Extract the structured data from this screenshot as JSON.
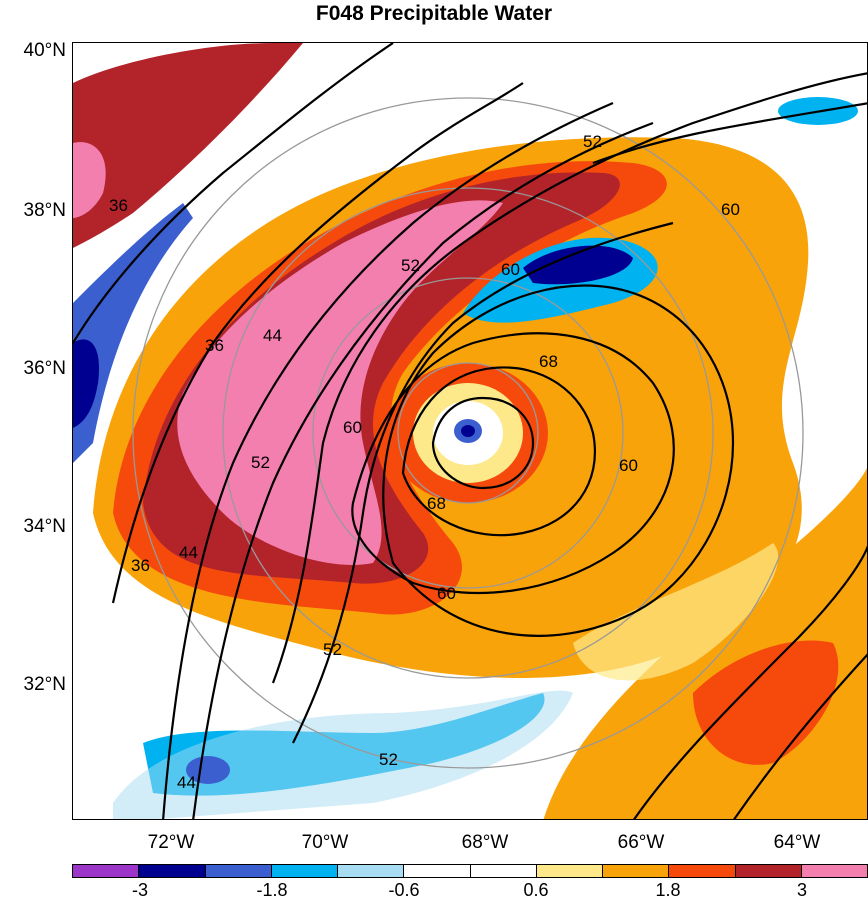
{
  "title": "F048 Precipitable Water",
  "lat_labels": [
    "40°N",
    "38°N",
    "36°N",
    "34°N",
    "32°N"
  ],
  "lon_labels": [
    "72°W",
    "70°W",
    "68°W",
    "66°W",
    "64°W"
  ],
  "contour_labels": [
    "36",
    "36",
    "36",
    "44",
    "44",
    "44",
    "52",
    "52",
    "52",
    "52",
    "52",
    "60",
    "60",
    "60",
    "60",
    "60",
    "68",
    "68"
  ],
  "colorbar": {
    "colors": [
      "#9c36c8",
      "#000090",
      "#3c5fd0",
      "#00b2f0",
      "#a8dcf2",
      "#ffffff",
      "#ffffff",
      "#fde98a",
      "#f9a30b",
      "#f64a0c",
      "#b2242a",
      "#f37fae"
    ],
    "labels": [
      "-3",
      "-1.8",
      "-0.6",
      "0.6",
      "1.8",
      "3"
    ]
  }
}
